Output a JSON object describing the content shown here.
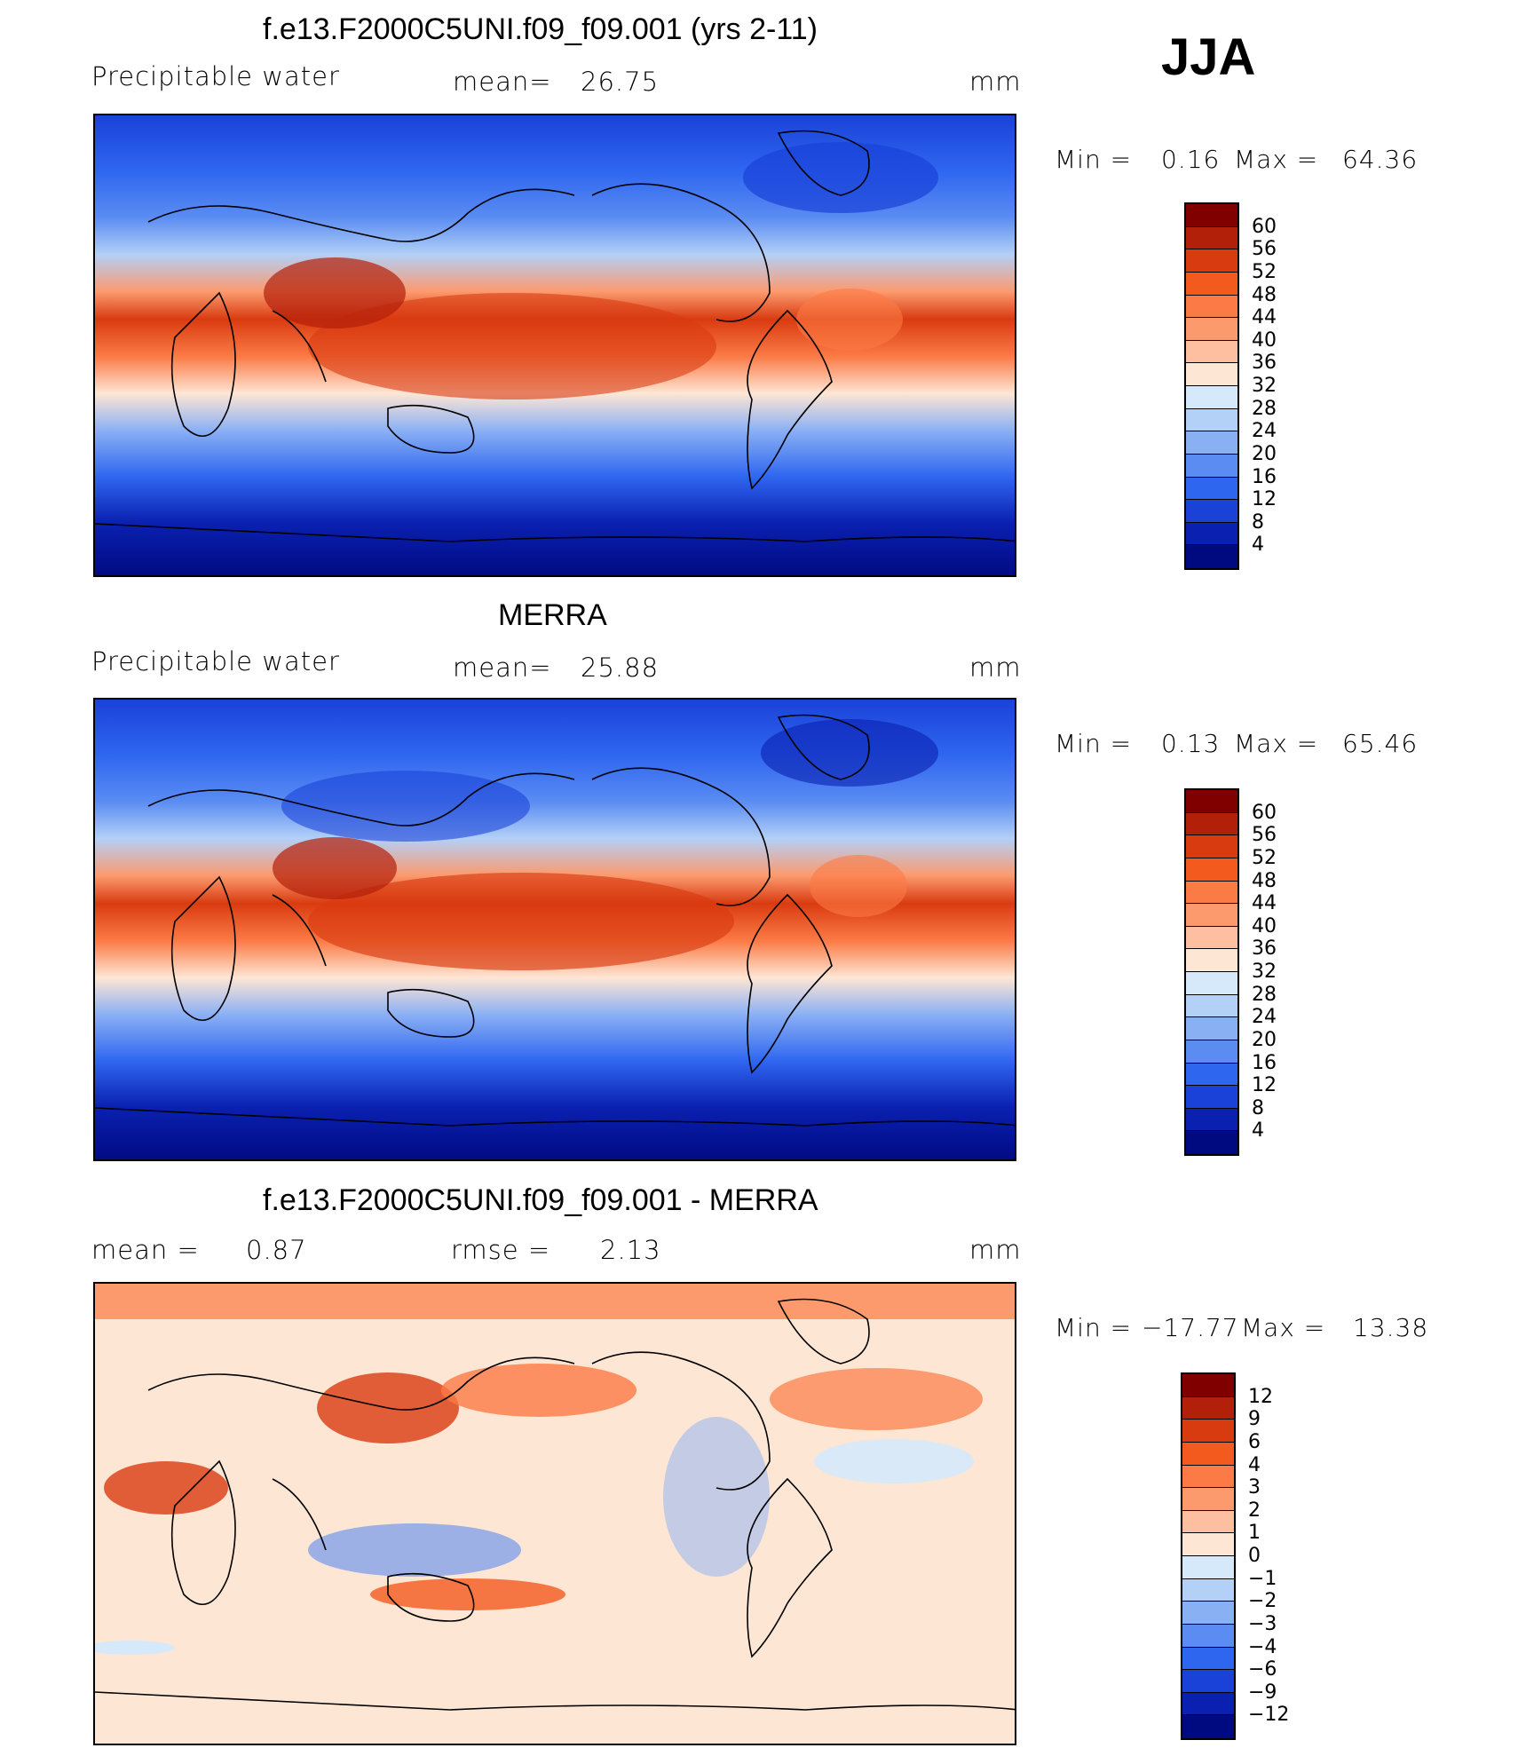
{
  "season": "JJA",
  "panels": [
    {
      "title": "f.e13.F2000C5UNI.f09_f09.001 (yrs 2-11)",
      "left_label": "Precipitable  water",
      "mid_label": "mean=",
      "mid_value": "26.75",
      "unit": "mm",
      "stats": {
        "min_label": "Min  =",
        "min": "0.16",
        "max_label": "Max  =",
        "max": "64.36"
      },
      "colorbar": {
        "labels": [
          "60",
          "56",
          "52",
          "48",
          "44",
          "40",
          "36",
          "32",
          "28",
          "24",
          "20",
          "16",
          "12",
          "8",
          "4"
        ],
        "colors": [
          "#800000",
          "#b3200a",
          "#d93b10",
          "#f25a1e",
          "#fb7a45",
          "#fc9a6e",
          "#fdbfa0",
          "#fee6d4",
          "#d6e9fb",
          "#b3d0f7",
          "#8ab0f4",
          "#5a8cf2",
          "#2f66f0",
          "#1a42d8",
          "#0a20b0",
          "#000a80"
        ]
      }
    },
    {
      "title": "MERRA",
      "left_label": "Precipitable  water",
      "mid_label": "mean=",
      "mid_value": "25.88",
      "unit": "mm",
      "stats": {
        "min_label": "Min  =",
        "min": "0.13",
        "max_label": "Max  =",
        "max": "65.46"
      },
      "colorbar": {
        "labels": [
          "60",
          "56",
          "52",
          "48",
          "44",
          "40",
          "36",
          "32",
          "28",
          "24",
          "20",
          "16",
          "12",
          "8",
          "4"
        ],
        "colors": [
          "#800000",
          "#b3200a",
          "#d93b10",
          "#f25a1e",
          "#fb7a45",
          "#fc9a6e",
          "#fdbfa0",
          "#fee6d4",
          "#d6e9fb",
          "#b3d0f7",
          "#8ab0f4",
          "#5a8cf2",
          "#2f66f0",
          "#1a42d8",
          "#0a20b0",
          "#000a80"
        ]
      }
    },
    {
      "title": "f.e13.F2000C5UNI.f09_f09.001 - MERRA",
      "left_label": "mean  =",
      "left_value": "0.87",
      "mid_label": "rmse  =",
      "mid_value": "2.13",
      "unit": "mm",
      "stats": {
        "min_label": "Min  =",
        "min": "−17.77",
        "max_label": "Max  =",
        "max": "13.38"
      },
      "colorbar": {
        "labels": [
          "12",
          "9",
          "6",
          "4",
          "3",
          "2",
          "1",
          "0",
          "−1",
          "−2",
          "−3",
          "−4",
          "−6",
          "−9",
          "−12"
        ],
        "colors": [
          "#800000",
          "#b3200a",
          "#d93b10",
          "#f25a1e",
          "#fb7a45",
          "#fc9a6e",
          "#fdbfa0",
          "#fee6d4",
          "#d6e9fb",
          "#b3d0f7",
          "#8ab0f4",
          "#5a8cf2",
          "#2f66f0",
          "#1a42d8",
          "#0a20b0",
          "#000a80"
        ]
      }
    }
  ]
}
